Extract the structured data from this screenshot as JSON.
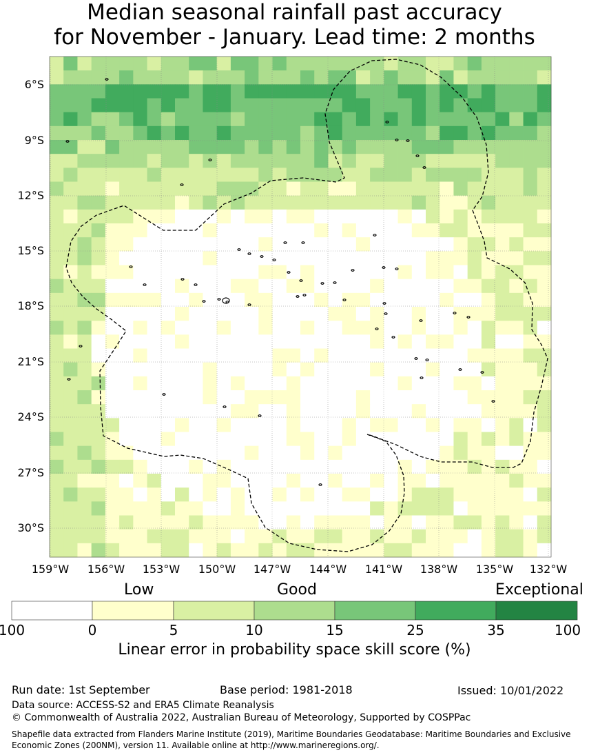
{
  "title": {
    "line1": "Median seasonal rainfall past accuracy",
    "line2": "for November - January. Lead time: 2 months"
  },
  "map": {
    "lat_labels": [
      "6°S",
      "9°S",
      "12°S",
      "15°S",
      "18°S",
      "21°S",
      "24°S",
      "27°S",
      "30°S"
    ],
    "lon_labels": [
      "159°W",
      "156°W",
      "153°W",
      "150°W",
      "147°W",
      "144°W",
      "141°W",
      "138°W",
      "135°W",
      "132°W"
    ],
    "lat_range": [
      4.5,
      31.5
    ],
    "lon_range": [
      159,
      132
    ]
  },
  "legend": {
    "categories": [
      "Low",
      "Good",
      "Exceptional"
    ],
    "ticks": [
      "100",
      "0",
      "5",
      "10",
      "15",
      "25",
      "35",
      "100"
    ],
    "colors": [
      "#ffffff",
      "#ffffcc",
      "#d9f0a3",
      "#addd8e",
      "#78c679",
      "#41ab5d",
      "#238443"
    ],
    "title": "Linear error in probability space skill score (%)"
  },
  "footer": {
    "run_date": "Run date: 1st September",
    "base_period": "Base period: 1981-2018",
    "issued": "Issued: 10/01/2022",
    "data_source": "Data source: ACCESS-S2 and ERA5 Climate Reanalysis",
    "copyright": "© Commonwealth of Australia 2022, Australian Bureau of Meteorology, Supported by COSPPac",
    "shapefile_line1": "Shapefile data extracted from Flanders Marine Institute (2019), Maritime Boundaries Geodatabase: Maritime Boundaries and Exclusive",
    "shapefile_line2": "Economic Zones (200NM), version 11. Available online at http://www.marineregions.org/."
  }
}
